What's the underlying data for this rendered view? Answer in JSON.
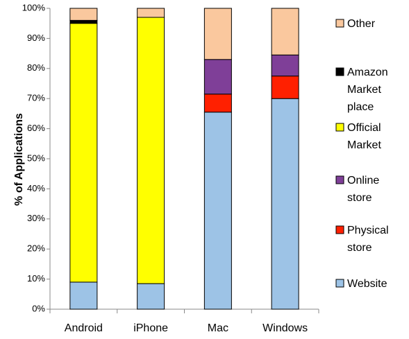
{
  "chart_data": {
    "type": "stacked_bar",
    "y_label": "% of Applications",
    "categories": [
      "Android",
      "iPhone",
      "Mac",
      "Windows"
    ],
    "series": [
      {
        "name": "Website",
        "color": "#9dc3e6",
        "values": [
          9,
          8.5,
          65.5,
          70
        ]
      },
      {
        "name": "Physical store",
        "color": "#ff2000",
        "values": [
          0,
          0,
          6,
          7.5
        ]
      },
      {
        "name": "Online store",
        "color": "#7f3f98",
        "values": [
          0,
          0,
          11.5,
          7
        ]
      },
      {
        "name": "Official Market",
        "color": "#ffff00",
        "values": [
          86,
          88.5,
          0,
          0
        ]
      },
      {
        "name": "Amazon Market place",
        "color": "#000000",
        "values": [
          1,
          0,
          0,
          0
        ]
      },
      {
        "name": "Other",
        "color": "#fac89e",
        "values": [
          4,
          3,
          17,
          15.5
        ]
      }
    ],
    "ylim": [
      0,
      100
    ],
    "yticks": [
      {
        "value": 0,
        "label": "0%"
      },
      {
        "value": 10,
        "label": "10%"
      },
      {
        "value": 20,
        "label": "20%"
      },
      {
        "value": 30,
        "label": "30%"
      },
      {
        "value": 40,
        "label": "40%"
      },
      {
        "value": 50,
        "label": "50%"
      },
      {
        "value": 60,
        "label": "60%"
      },
      {
        "value": 70,
        "label": "70%"
      },
      {
        "value": 80,
        "label": "80%"
      },
      {
        "value": 90,
        "label": "90%"
      },
      {
        "value": 100,
        "label": "100%"
      }
    ],
    "grid": false
  }
}
